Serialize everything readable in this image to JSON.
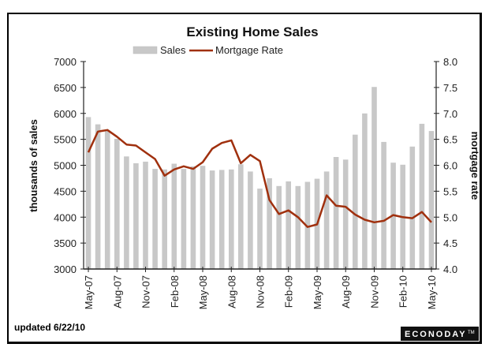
{
  "chart_data": {
    "type": "bar",
    "title": "Existing Home Sales",
    "legend": [
      "Sales",
      "Mortgage Rate"
    ],
    "legend_position": "top",
    "ylabel": "thousands of sales",
    "y2label": "mortgage rate",
    "ylim": [
      3000,
      7000
    ],
    "y2lim": [
      4.0,
      8.0
    ],
    "yticks": [
      "3000",
      "3500",
      "4000",
      "4500",
      "5000",
      "5500",
      "6000",
      "6500",
      "7000"
    ],
    "y2ticks": [
      "4.0",
      "4.5",
      "5.0",
      "5.5",
      "6.0",
      "6.5",
      "7.0",
      "7.5",
      "8.0"
    ],
    "xtick_labels": [
      "May-07",
      "Aug-07",
      "Nov-07",
      "Feb-08",
      "May-08",
      "Aug-08",
      "Nov-08",
      "Feb-09",
      "May-09",
      "Aug-09",
      "Nov-09",
      "Feb-10",
      "May-10"
    ],
    "categories": [
      "May-07",
      "Jun-07",
      "Jul-07",
      "Aug-07",
      "Sep-07",
      "Oct-07",
      "Nov-07",
      "Dec-07",
      "Jan-08",
      "Feb-08",
      "Mar-08",
      "Apr-08",
      "May-08",
      "Jun-08",
      "Jul-08",
      "Aug-08",
      "Sep-08",
      "Oct-08",
      "Nov-08",
      "Dec-08",
      "Jan-09",
      "Feb-09",
      "Mar-09",
      "Apr-09",
      "May-09",
      "Jun-09",
      "Jul-09",
      "Aug-09",
      "Sep-09",
      "Oct-09",
      "Nov-09",
      "Dec-09",
      "Jan-10",
      "Feb-10",
      "Mar-10",
      "Apr-10",
      "May-10"
    ],
    "series": [
      {
        "name": "Sales",
        "type": "bar",
        "axis": "left",
        "values": [
          5930,
          5790,
          5680,
          5510,
          5170,
          5040,
          5070,
          4930,
          4920,
          5030,
          4930,
          4980,
          4990,
          4900,
          4910,
          4920,
          5020,
          4880,
          4550,
          4750,
          4600,
          4690,
          4600,
          4680,
          4740,
          4880,
          5160,
          5110,
          5590,
          6000,
          6510,
          5450,
          5050,
          5010,
          5360,
          5800,
          5660
        ]
      },
      {
        "name": "Mortgage Rate",
        "type": "line",
        "axis": "right",
        "values": [
          6.25,
          6.65,
          6.68,
          6.55,
          6.4,
          6.38,
          6.25,
          6.12,
          5.8,
          5.92,
          5.98,
          5.93,
          6.06,
          6.32,
          6.43,
          6.48,
          6.04,
          6.2,
          6.08,
          5.33,
          5.06,
          5.13,
          5.0,
          4.81,
          4.86,
          5.42,
          5.22,
          5.2,
          5.05,
          4.95,
          4.9,
          4.93,
          5.04,
          5.0,
          4.98,
          5.1,
          4.9
        ]
      }
    ],
    "grid": false
  },
  "footer": {
    "updated": "updated 6/22/10",
    "logo": "ECONODAY",
    "logo_mark": "TM"
  },
  "colors": {
    "bar": "#c8c8c8",
    "line": "#a0300e"
  }
}
